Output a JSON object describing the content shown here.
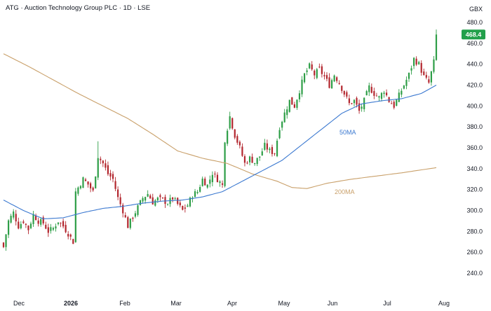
{
  "header": {
    "title": "ATG · Auction Technology Group PLC · 1D · LSE",
    "currency": "GBX"
  },
  "last_price_label": "468.4",
  "colors": {
    "up": "#2e9e47",
    "down": "#b3262e",
    "ma50": "#3a78d0",
    "ma200": "#c9a06a",
    "price_badge": "#22a04b",
    "grid_text": "#131722"
  },
  "chart_data": {
    "type": "candlestick",
    "title": "ATG · Auction Technology Group PLC · 1D · LSE",
    "ylabel": "GBX",
    "ylim": [
      240,
      480
    ],
    "y_ticks": [
      "480.0",
      "460.0",
      "440.0",
      "420.0",
      "400.0",
      "380.0",
      "360.0",
      "340.0",
      "320.0",
      "300.0",
      "280.0",
      "260.0",
      "240.0"
    ],
    "x_ticks": [
      {
        "label": "Dec",
        "month_index": 0
      },
      {
        "label": "2026",
        "month_index": 1,
        "bold": true
      },
      {
        "label": "Feb",
        "month_index": 2
      },
      {
        "label": "Mar",
        "month_index": 3
      },
      {
        "label": "Apr",
        "month_index": 4
      },
      {
        "label": "May",
        "month_index": 5
      },
      {
        "label": "Jun",
        "month_index": 6
      },
      {
        "label": "Jul",
        "month_index": 7
      },
      {
        "label": "Aug",
        "month_index": 8
      }
    ],
    "last_price": 468.4,
    "ma_labels": {
      "ma50": "50MA",
      "ma200": "200MA"
    },
    "close_path": [
      [
        0,
        265
      ],
      [
        2,
        290
      ],
      [
        4,
        298
      ],
      [
        6,
        285
      ],
      [
        8,
        290
      ],
      [
        10,
        282
      ],
      [
        12,
        296
      ],
      [
        14,
        290
      ],
      [
        16,
        288
      ],
      [
        18,
        280
      ],
      [
        20,
        283
      ],
      [
        22,
        290
      ],
      [
        24,
        285
      ],
      [
        26,
        278
      ],
      [
        28,
        270
      ],
      [
        29,
        318
      ],
      [
        32,
        330
      ],
      [
        34,
        325
      ],
      [
        36,
        318
      ],
      [
        38,
        352
      ],
      [
        40,
        345
      ],
      [
        42,
        335
      ],
      [
        44,
        330
      ],
      [
        46,
        312
      ],
      [
        48,
        300
      ],
      [
        50,
        285
      ],
      [
        52,
        294
      ],
      [
        54,
        303
      ],
      [
        56,
        312
      ],
      [
        58,
        316
      ],
      [
        60,
        308
      ],
      [
        62,
        311
      ],
      [
        64,
        310
      ],
      [
        66,
        307
      ],
      [
        68,
        312
      ],
      [
        70,
        306
      ],
      [
        72,
        300
      ],
      [
        74,
        305
      ],
      [
        76,
        315
      ],
      [
        78,
        318
      ],
      [
        80,
        330
      ],
      [
        82,
        324
      ],
      [
        84,
        336
      ],
      [
        86,
        330
      ],
      [
        88,
        324
      ],
      [
        89,
        368
      ],
      [
        91,
        390
      ],
      [
        93,
        372
      ],
      [
        95,
        360
      ],
      [
        97,
        345
      ],
      [
        99,
        350
      ],
      [
        101,
        346
      ],
      [
        103,
        352
      ],
      [
        105,
        362
      ],
      [
        107,
        357
      ],
      [
        109,
        355
      ],
      [
        111,
        380
      ],
      [
        113,
        393
      ],
      [
        115,
        405
      ],
      [
        117,
        400
      ],
      [
        119,
        415
      ],
      [
        121,
        430
      ],
      [
        123,
        438
      ],
      [
        125,
        430
      ],
      [
        127,
        435
      ],
      [
        129,
        428
      ],
      [
        131,
        420
      ],
      [
        133,
        430
      ],
      [
        135,
        422
      ],
      [
        137,
        412
      ],
      [
        139,
        402
      ],
      [
        141,
        405
      ],
      [
        143,
        395
      ],
      [
        145,
        405
      ],
      [
        147,
        418
      ],
      [
        149,
        412
      ],
      [
        151,
        408
      ],
      [
        153,
        415
      ],
      [
        155,
        405
      ],
      [
        157,
        400
      ],
      [
        159,
        410
      ],
      [
        161,
        420
      ],
      [
        163,
        430
      ],
      [
        165,
        445
      ],
      [
        167,
        440
      ],
      [
        169,
        428
      ],
      [
        171,
        422
      ],
      [
        173,
        442
      ],
      [
        174,
        468.4
      ]
    ],
    "ma50": [
      [
        0,
        310
      ],
      [
        8,
        300
      ],
      [
        16,
        292
      ],
      [
        24,
        293
      ],
      [
        32,
        298
      ],
      [
        40,
        302
      ],
      [
        48,
        304
      ],
      [
        56,
        307
      ],
      [
        64,
        309
      ],
      [
        72,
        310
      ],
      [
        80,
        313
      ],
      [
        88,
        318
      ],
      [
        96,
        328
      ],
      [
        104,
        338
      ],
      [
        112,
        348
      ],
      [
        120,
        363
      ],
      [
        128,
        378
      ],
      [
        136,
        393
      ],
      [
        144,
        402
      ],
      [
        152,
        405
      ],
      [
        160,
        407
      ],
      [
        168,
        412
      ],
      [
        174,
        420
      ]
    ],
    "ma200": [
      [
        0,
        450
      ],
      [
        10,
        438
      ],
      [
        20,
        425
      ],
      [
        30,
        412
      ],
      [
        40,
        400
      ],
      [
        50,
        388
      ],
      [
        60,
        373
      ],
      [
        70,
        357
      ],
      [
        80,
        350
      ],
      [
        90,
        345
      ],
      [
        100,
        335
      ],
      [
        110,
        328
      ],
      [
        116,
        322
      ],
      [
        122,
        321
      ],
      [
        130,
        326
      ],
      [
        140,
        330
      ],
      [
        150,
        333
      ],
      [
        160,
        336
      ],
      [
        174,
        341
      ]
    ]
  }
}
